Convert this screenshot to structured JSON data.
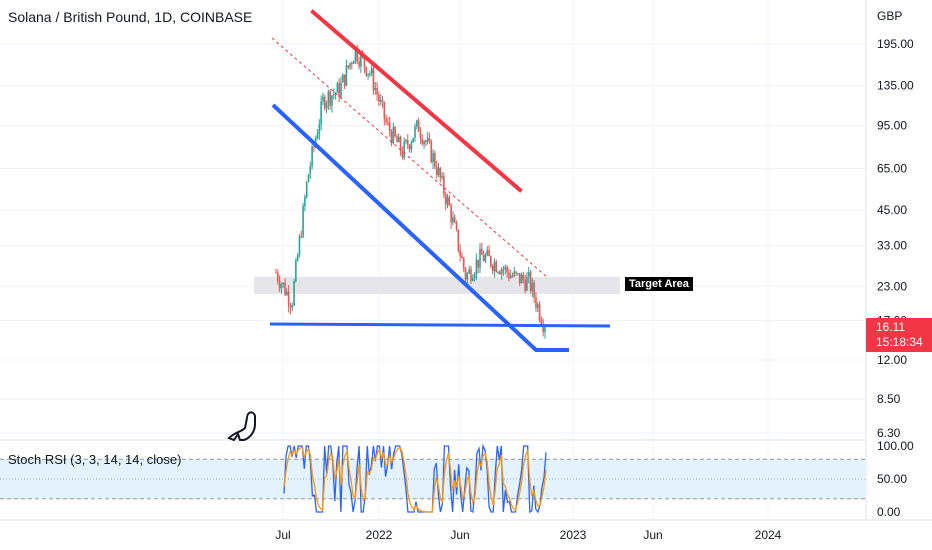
{
  "header": {
    "title": "Solana / British Pound, 1D, COINBASE"
  },
  "price_axis": {
    "currency": "GBP"
  },
  "last_price": {
    "value": "16.11",
    "countdown": "15:18:34"
  },
  "annotation": {
    "target_label": "Target Area"
  },
  "indicator": {
    "label": "Stoch RSI (3, 3, 14, 14, close)"
  },
  "colors": {
    "up": "#26a69a",
    "down": "#ef5350",
    "red_line": "#f23645",
    "blue_line": "#2962ff",
    "k_line": "#2962ff",
    "d_line": "#ff9800",
    "band": "#e3f2fd"
  },
  "chart_data": [
    {
      "type": "line",
      "title": "Solana / British Pound, 1D, COINBASE",
      "yscale": "log",
      "ylabel": "GBP",
      "y_ticks": [
        195.0,
        135.0,
        95.0,
        65.0,
        45.0,
        33.0,
        23.0,
        17.0,
        12.0,
        8.5,
        6.3
      ],
      "y_tick_labels": [
        "195.00",
        "135.00",
        "95.00",
        "65.00",
        "45.00",
        "33.00",
        "23.00",
        "17.00",
        "12.00",
        "8.50",
        "6.30"
      ],
      "x_tick_labels": [
        "Jul",
        "2022",
        "Jun",
        "2023",
        "Jun",
        "2024"
      ],
      "x": [
        "2021-06",
        "2021-07",
        "2021-08",
        "2021-09",
        "2021-10",
        "2021-11",
        "2021-12",
        "2022-01",
        "2022-02",
        "2022-03",
        "2022-04",
        "2022-05",
        "2022-06",
        "2022-07",
        "2022-08",
        "2022-09",
        "2022-10",
        "2022-11"
      ],
      "series": [
        {
          "values": [
            26,
            20,
            60,
            120,
            130,
            185,
            150,
            95,
            75,
            95,
            70,
            45,
            25,
            30,
            28,
            25,
            24,
            16.11
          ]
        }
      ],
      "last_value": 16.11,
      "grid": true
    },
    {
      "type": "line",
      "title": "Stoch RSI (3, 3, 14, 14, close)",
      "y_ticks": [
        0.0,
        50.0,
        100.0
      ],
      "y_tick_labels": [
        "0.00",
        "50.00",
        "100.00"
      ],
      "band": [
        20,
        80
      ]
    }
  ]
}
